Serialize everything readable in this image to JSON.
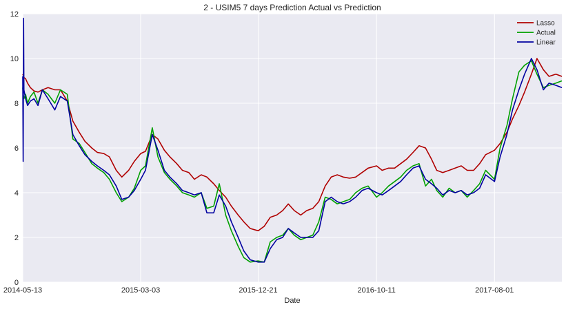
{
  "chart_data": {
    "type": "line",
    "title": "2 - USIM5 7 days Prediction Actual vs Prediction",
    "xlabel": "Date",
    "ylabel": "",
    "x_ticks": [
      "2014-05-13",
      "2015-03-03",
      "2015-12-21",
      "2016-10-11",
      "2017-08-01"
    ],
    "y_ticks": [
      0,
      2,
      4,
      6,
      8,
      10,
      12
    ],
    "xlim": [
      "2014-05-13",
      "2018-01-16"
    ],
    "ylim": [
      0,
      12
    ],
    "grid": true,
    "background_color": "#eaeaf2",
    "grid_color": "#ffffff",
    "legend_position": "top-right",
    "x": [
      "2014-05-13",
      "2014-05-14",
      "2014-05-15",
      "2014-05-16",
      "2014-05-20",
      "2014-05-25",
      "2014-06-01",
      "2014-06-10",
      "2014-06-20",
      "2014-07-01",
      "2014-07-15",
      "2014-08-01",
      "2014-08-15",
      "2014-09-01",
      "2014-09-15",
      "2014-10-01",
      "2014-10-15",
      "2014-11-01",
      "2014-11-15",
      "2014-12-01",
      "2014-12-15",
      "2015-01-01",
      "2015-01-15",
      "2015-02-01",
      "2015-02-15",
      "2015-03-03",
      "2015-03-15",
      "2015-04-01",
      "2015-04-15",
      "2015-05-01",
      "2015-05-15",
      "2015-06-01",
      "2015-06-15",
      "2015-07-01",
      "2015-07-15",
      "2015-08-01",
      "2015-08-15",
      "2015-09-01",
      "2015-09-15",
      "2015-10-01",
      "2015-10-15",
      "2015-11-01",
      "2015-11-15",
      "2015-12-01",
      "2015-12-21",
      "2016-01-05",
      "2016-01-20",
      "2016-02-05",
      "2016-02-20",
      "2016-03-05",
      "2016-03-20",
      "2016-04-05",
      "2016-04-20",
      "2016-05-05",
      "2016-05-20",
      "2016-06-05",
      "2016-06-20",
      "2016-07-05",
      "2016-07-20",
      "2016-08-05",
      "2016-08-20",
      "2016-09-05",
      "2016-09-20",
      "2016-10-11",
      "2016-10-25",
      "2016-11-10",
      "2016-11-25",
      "2016-12-10",
      "2016-12-25",
      "2017-01-10",
      "2017-01-25",
      "2017-02-10",
      "2017-02-25",
      "2017-03-10",
      "2017-03-25",
      "2017-04-10",
      "2017-04-25",
      "2017-05-10",
      "2017-05-25",
      "2017-06-10",
      "2017-06-25",
      "2017-07-10",
      "2017-08-01",
      "2017-08-15",
      "2017-09-01",
      "2017-09-15",
      "2017-10-01",
      "2017-10-15",
      "2017-11-01",
      "2017-11-15",
      "2017-12-01",
      "2017-12-15",
      "2018-01-01",
      "2018-01-16"
    ],
    "series": [
      {
        "name": "Lasso",
        "color": "#b00000",
        "values": [
          9.3,
          9.25,
          9.2,
          9.15,
          9.1,
          8.9,
          8.7,
          8.55,
          8.5,
          8.6,
          8.7,
          8.6,
          8.6,
          8.1,
          7.2,
          6.7,
          6.3,
          6.0,
          5.8,
          5.75,
          5.6,
          5.0,
          4.7,
          5.0,
          5.4,
          5.75,
          5.85,
          6.6,
          6.4,
          5.9,
          5.6,
          5.3,
          5.0,
          4.9,
          4.6,
          4.8,
          4.7,
          4.4,
          4.1,
          3.8,
          3.4,
          3.0,
          2.7,
          2.4,
          2.3,
          2.5,
          2.9,
          3.0,
          3.2,
          3.5,
          3.2,
          3.0,
          3.2,
          3.3,
          3.6,
          4.3,
          4.7,
          4.8,
          4.7,
          4.65,
          4.7,
          4.9,
          5.1,
          5.2,
          5.0,
          5.1,
          5.1,
          5.3,
          5.5,
          5.8,
          6.1,
          6.0,
          5.5,
          5.0,
          4.9,
          5.0,
          5.1,
          5.2,
          5.0,
          5.0,
          5.3,
          5.7,
          5.9,
          6.2,
          6.7,
          7.3,
          7.9,
          8.5,
          9.3,
          10.0,
          9.5,
          9.2,
          9.3,
          9.2
        ]
      },
      {
        "name": "Actual",
        "color": "#00a000",
        "values": [
          8.7,
          8.4,
          8.3,
          8.2,
          8.4,
          8.0,
          8.3,
          8.5,
          8.0,
          8.6,
          8.4,
          8.0,
          8.6,
          8.4,
          6.4,
          6.2,
          5.8,
          5.3,
          5.1,
          4.9,
          4.6,
          4.0,
          3.6,
          3.8,
          4.2,
          5.0,
          5.2,
          6.9,
          5.6,
          4.9,
          4.6,
          4.3,
          4.0,
          3.9,
          3.8,
          4.0,
          3.3,
          3.4,
          4.4,
          3.0,
          2.3,
          1.6,
          1.1,
          0.9,
          0.95,
          0.9,
          1.8,
          2.0,
          2.1,
          2.4,
          2.1,
          1.9,
          2.0,
          2.1,
          2.7,
          3.8,
          3.7,
          3.5,
          3.6,
          3.7,
          4.0,
          4.2,
          4.3,
          3.8,
          4.0,
          4.3,
          4.5,
          4.7,
          5.0,
          5.2,
          5.3,
          4.3,
          4.6,
          4.1,
          3.8,
          4.2,
          4.0,
          4.1,
          3.8,
          4.1,
          4.4,
          5.0,
          4.6,
          6.0,
          7.0,
          8.2,
          9.4,
          9.7,
          9.9,
          9.3,
          8.7,
          8.8,
          8.9,
          9.0
        ]
      },
      {
        "name": "Linear",
        "color": "#0000a0",
        "values": [
          9.2,
          5.4,
          11.8,
          8.6,
          8.2,
          7.9,
          8.1,
          8.2,
          7.9,
          8.6,
          8.2,
          7.7,
          8.3,
          8.1,
          6.6,
          6.1,
          5.7,
          5.4,
          5.2,
          5.0,
          4.8,
          4.3,
          3.7,
          3.8,
          4.1,
          4.6,
          5.0,
          6.6,
          5.9,
          5.0,
          4.7,
          4.4,
          4.1,
          4.0,
          3.9,
          4.0,
          3.1,
          3.1,
          3.9,
          3.4,
          2.7,
          2.0,
          1.4,
          1.0,
          0.9,
          0.9,
          1.5,
          1.9,
          2.0,
          2.4,
          2.2,
          2.0,
          2.0,
          2.0,
          2.3,
          3.6,
          3.8,
          3.6,
          3.5,
          3.6,
          3.8,
          4.1,
          4.2,
          4.0,
          3.9,
          4.1,
          4.3,
          4.5,
          4.8,
          5.1,
          5.2,
          4.6,
          4.4,
          4.2,
          3.9,
          4.1,
          4.0,
          4.1,
          3.9,
          4.0,
          4.2,
          4.8,
          4.5,
          5.6,
          6.6,
          7.7,
          8.6,
          9.3,
          10.0,
          9.5,
          8.6,
          8.9,
          8.8,
          8.7
        ]
      }
    ]
  }
}
